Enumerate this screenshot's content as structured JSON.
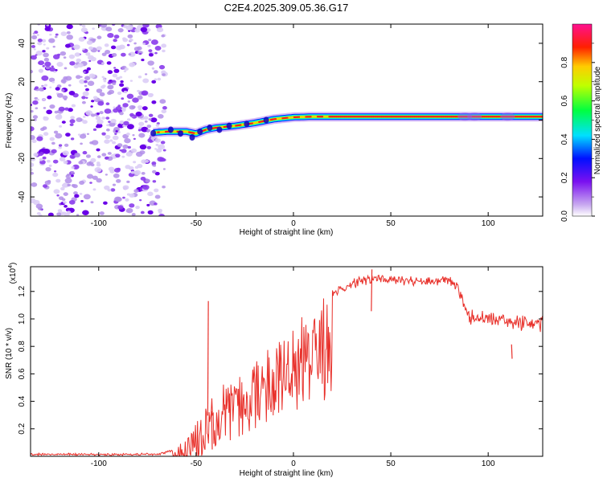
{
  "title": "C2E4.2025.309.05.36.G17",
  "chart_data": [
    {
      "type": "heatmap",
      "id": "spectrogram",
      "xlabel": "Height of straight line (km)",
      "ylabel": "Frequency (Hz)",
      "xlim": [
        -135,
        128
      ],
      "ylim": [
        -50,
        50
      ],
      "x_ticks": [
        -100,
        -50,
        0,
        50,
        100
      ],
      "y_ticks": [
        -40,
        -20,
        0,
        20,
        40
      ],
      "noise_region_x": [
        -135,
        -66
      ],
      "trace": [
        {
          "x": -72,
          "f": -6.5
        },
        {
          "x": -65,
          "f": -6
        },
        {
          "x": -60,
          "f": -6
        },
        {
          "x": -55,
          "f": -6
        },
        {
          "x": -50,
          "f": -7
        },
        {
          "x": -45,
          "f": -5
        },
        {
          "x": -40,
          "f": -4
        },
        {
          "x": -30,
          "f": -3
        },
        {
          "x": -20,
          "f": -1.5
        },
        {
          "x": -10,
          "f": 0.5
        },
        {
          "x": 0,
          "f": 1.5
        },
        {
          "x": 10,
          "f": 1.8
        },
        {
          "x": 20,
          "f": 1.8
        },
        {
          "x": 40,
          "f": 1.8
        },
        {
          "x": 60,
          "f": 1.8
        },
        {
          "x": 80,
          "f": 1.8
        },
        {
          "x": 100,
          "f": 1.8
        },
        {
          "x": 128,
          "f": 1.8
        }
      ],
      "colorbar": {
        "label": "Normalized spectral amplitude",
        "range": [
          0,
          1
        ],
        "ticks": [
          "0.0",
          "0.2",
          "0.4",
          "0.6",
          "0.8"
        ]
      }
    },
    {
      "type": "line",
      "id": "snr",
      "xlabel": "Height of straight line (km)",
      "ylabel": "SNR (10 * v/v)",
      "multiplier_label": "(x10",
      "multiplier_exp": "4",
      "xlim": [
        -135,
        128
      ],
      "ylim": [
        0,
        1.38
      ],
      "x_ticks": [
        -100,
        -50,
        0,
        50,
        100
      ],
      "y_ticks": [
        "0.2",
        "0.4",
        "0.6",
        "0.8",
        "1.0",
        "1.2"
      ],
      "series": [
        {
          "name": "SNR",
          "color": "#e8302a",
          "envelope": [
            {
              "x": -135,
              "y": 0.02
            },
            {
              "x": -70,
              "y": 0.02
            },
            {
              "x": -62,
              "y": 0.05
            },
            {
              "x": -55,
              "y": 0.15
            },
            {
              "x": -50,
              "y": 0.28
            },
            {
              "x": -45,
              "y": 0.35
            },
            {
              "x": -40,
              "y": 0.45
            },
            {
              "x": -30,
              "y": 0.55
            },
            {
              "x": -20,
              "y": 0.7
            },
            {
              "x": -10,
              "y": 0.85
            },
            {
              "x": 0,
              "y": 0.95
            },
            {
              "x": 10,
              "y": 1.08
            },
            {
              "x": 20,
              "y": 1.2
            },
            {
              "x": 30,
              "y": 1.28
            },
            {
              "x": 40,
              "y": 1.32
            },
            {
              "x": 60,
              "y": 1.3
            },
            {
              "x": 80,
              "y": 1.3
            },
            {
              "x": 85,
              "y": 1.25
            },
            {
              "x": 90,
              "y": 1.05
            },
            {
              "x": 100,
              "y": 1.05
            },
            {
              "x": 110,
              "y": 1.02
            },
            {
              "x": 128,
              "y": 1.0
            }
          ],
          "spikes": [
            {
              "x": -44,
              "y": 1.13
            },
            {
              "x": 40,
              "y": 1.36
            },
            {
              "x": 112,
              "y": 0.71
            },
            {
              "x": -42,
              "y": 0.05
            }
          ]
        }
      ]
    }
  ]
}
